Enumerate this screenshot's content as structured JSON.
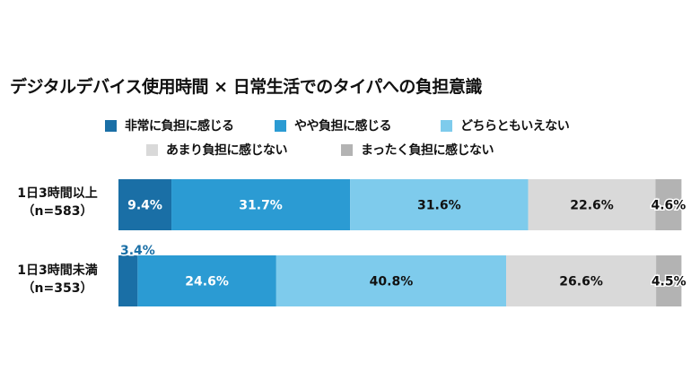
{
  "chart_data": {
    "type": "bar",
    "orientation": "horizontal",
    "stacked": true,
    "title": "デジタルデバイス使用時間 × 日常生活でのタイパへの負担意識",
    "categories": [
      {
        "line1": "1日3時間以上",
        "line2": "（n=583）"
      },
      {
        "line1": "1日3時間未満",
        "line2": "（n=353）"
      }
    ],
    "series": [
      {
        "name": "非常に負担に感じる",
        "color": "#1a6fa6",
        "values": [
          9.4,
          3.4
        ],
        "value_labels": [
          "9.4%",
          "3.4%"
        ]
      },
      {
        "name": "やや負担に感じる",
        "color": "#2b9bd3",
        "values": [
          31.7,
          24.6
        ],
        "value_labels": [
          "31.7%",
          "24.6%"
        ]
      },
      {
        "name": "どちらともいえない",
        "color": "#7ecbec",
        "values": [
          31.6,
          40.8
        ],
        "value_labels": [
          "31.6%",
          "40.8%"
        ]
      },
      {
        "name": "あまり負担に感じない",
        "color": "#d9d9d9",
        "values": [
          22.6,
          26.6
        ],
        "value_labels": [
          "22.6%",
          "26.6%"
        ]
      },
      {
        "name": "まったく負担に感じない",
        "color": "#b3b3b3",
        "values": [
          4.6,
          4.5
        ],
        "value_labels": [
          "4.6%",
          "4.5%"
        ]
      }
    ],
    "xlim": [
      0,
      100
    ],
    "legend_position": "top",
    "grid": false
  }
}
